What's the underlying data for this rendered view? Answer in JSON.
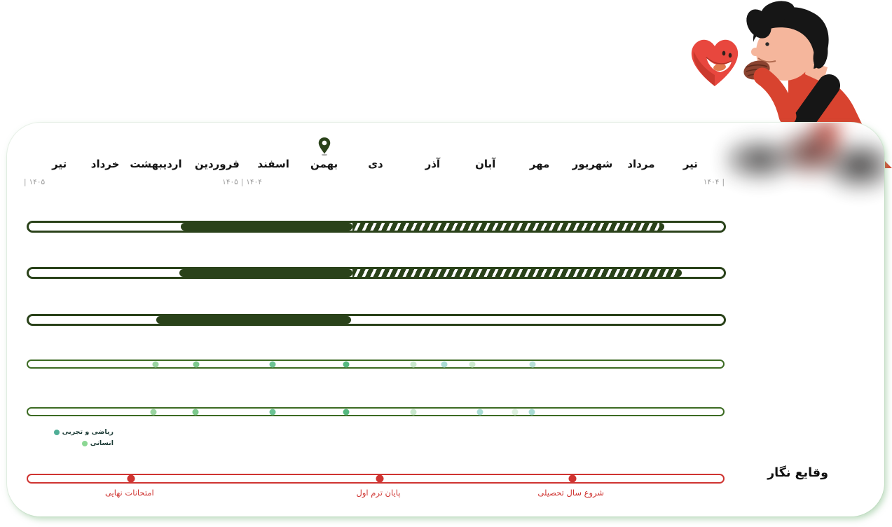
{
  "card": {
    "title": "وقایع نگار"
  },
  "colors": {
    "bar_dark_green": "#2a421a",
    "row_border_green": "#3c6b23",
    "red": "#cf3431",
    "year_gray": "#9a9a9a",
    "pin_green": "#2a421a",
    "heart_red": "#e8473e",
    "body_red": "#d8432f"
  },
  "months": {
    "items": [
      {
        "label": "تیر",
        "pct": 4.7
      },
      {
        "label": "خرداد",
        "pct": 11.3
      },
      {
        "label": "اردیبهشت",
        "pct": 18.6
      },
      {
        "label": "فروردین",
        "pct": 27.4
      },
      {
        "label": "اسفند",
        "pct": 35.5
      },
      {
        "label": "بهمن",
        "pct": 42.8,
        "pin": true
      },
      {
        "label": "دی",
        "pct": 50.2
      },
      {
        "label": "آذر",
        "pct": 58.4
      },
      {
        "label": "آبان",
        "pct": 66.0
      },
      {
        "label": "مهر",
        "pct": 73.8
      },
      {
        "label": "شهریور",
        "pct": 81.4
      },
      {
        "label": "مرداد",
        "pct": 88.4
      },
      {
        "label": "تیر",
        "pct": 95.5
      }
    ]
  },
  "year_markers": {
    "left": "۱۴۰۵",
    "mid_new": "۱۴۰۵",
    "mid_old": "۱۴۰۴",
    "right": "۱۴۰۴",
    "separator": "|"
  },
  "tracks": [
    {
      "name": "track-1",
      "segments": [
        {
          "type": "solid",
          "start_pct": 21.9,
          "end_pct": 46.6
        },
        {
          "type": "striped",
          "start_pct": 46.6,
          "end_pct": 90.7
        }
      ]
    },
    {
      "name": "track-2",
      "segments": [
        {
          "type": "solid",
          "start_pct": 21.7,
          "end_pct": 46.6
        },
        {
          "type": "striped",
          "start_pct": 46.6,
          "end_pct": 93.2
        }
      ]
    },
    {
      "name": "track-3",
      "segments": [
        {
          "type": "solid",
          "start_pct": 18.3,
          "end_pct": 46.4
        }
      ]
    }
  ],
  "dot_rows": [
    {
      "name": "dots-row-1",
      "dots": [
        {
          "pct": 18.3,
          "color": "#9ad4a0"
        },
        {
          "pct": 24.2,
          "color": "#7cc88b"
        },
        {
          "pct": 35.2,
          "color": "#6cc394"
        },
        {
          "pct": 45.8,
          "color": "#55b87e"
        },
        {
          "pct": 55.4,
          "color": "#c9e8cd"
        },
        {
          "pct": 59.9,
          "color": "#a9dcd4"
        },
        {
          "pct": 63.9,
          "color": "#cdeacf"
        },
        {
          "pct": 72.6,
          "color": "#b7e0d8"
        }
      ]
    },
    {
      "name": "dots-row-2",
      "dots": [
        {
          "pct": 18.0,
          "color": "#9ad4a0"
        },
        {
          "pct": 24.1,
          "color": "#7cc88b"
        },
        {
          "pct": 35.2,
          "color": "#6cc394"
        },
        {
          "pct": 45.8,
          "color": "#55b87e"
        },
        {
          "pct": 55.4,
          "color": "#c9e8cd"
        },
        {
          "pct": 65.0,
          "color": "#a9dcd4"
        },
        {
          "pct": 70.1,
          "color": "#ddf0de"
        },
        {
          "pct": 72.5,
          "color": "#a9dcd4"
        }
      ]
    }
  ],
  "legend": {
    "items": [
      {
        "label": "ریاضی و تجربی",
        "color": "#4fae96"
      },
      {
        "label": "انسانی",
        "color": "#8bd793"
      }
    ]
  },
  "timeline": {
    "events": [
      {
        "label": "شروع سال تحصیلی",
        "pct": 78.3
      },
      {
        "label": "پایان ترم اول",
        "pct": 50.6
      },
      {
        "label": "امتحانات نهایی",
        "pct": 14.8
      }
    ]
  }
}
